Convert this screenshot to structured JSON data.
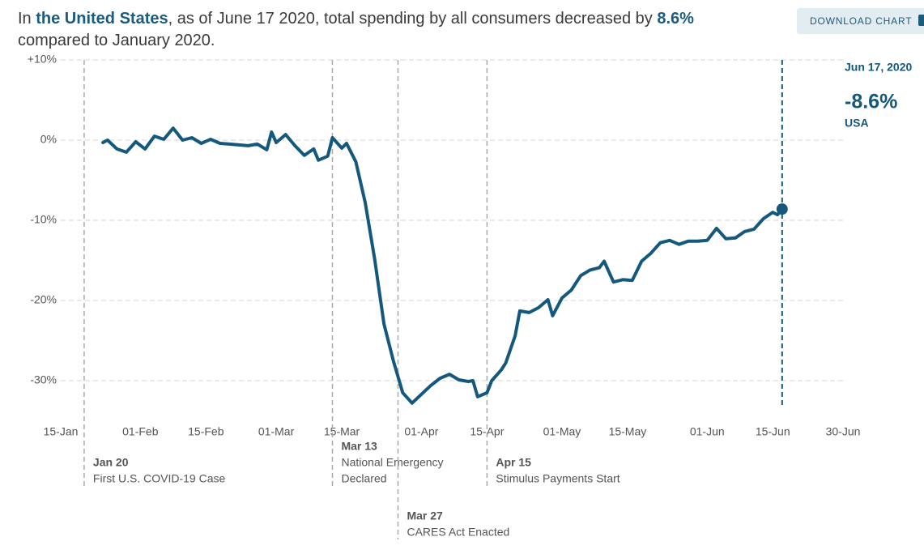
{
  "chart_data": {
    "type": "line",
    "title_parts": [
      {
        "text": "In ",
        "bold": false
      },
      {
        "text": "the United States",
        "bold": true
      },
      {
        "text": ", as of June 17 2020, total spending by all consumers decreased by ",
        "bold": false
      },
      {
        "text": "8.6%",
        "bold": true
      },
      {
        "text": " compared to January 2020.",
        "bold": false
      }
    ],
    "button": "DOWNLOAD CHART",
    "color": "#14587d",
    "x": [
      "2020-01-24",
      "2020-01-25",
      "2020-01-27",
      "2020-01-29",
      "2020-01-31",
      "2020-02-02",
      "2020-02-04",
      "2020-02-06",
      "2020-02-08",
      "2020-02-10",
      "2020-02-12",
      "2020-02-14",
      "2020-02-16",
      "2020-02-18",
      "2020-02-20",
      "2020-02-22",
      "2020-02-24",
      "2020-02-26",
      "2020-02-28",
      "2020-02-29",
      "2020-03-01",
      "2020-03-03",
      "2020-03-05",
      "2020-03-07",
      "2020-03-09",
      "2020-03-10",
      "2020-03-12",
      "2020-03-13",
      "2020-03-15",
      "2020-03-16",
      "2020-03-18",
      "2020-03-20",
      "2020-03-22",
      "2020-03-24",
      "2020-03-26",
      "2020-03-28",
      "2020-03-30",
      "2020-04-01",
      "2020-04-03",
      "2020-04-05",
      "2020-04-07",
      "2020-04-09",
      "2020-04-11",
      "2020-04-12",
      "2020-04-13",
      "2020-04-15",
      "2020-04-16",
      "2020-04-18",
      "2020-04-19",
      "2020-04-21",
      "2020-04-22",
      "2020-04-24",
      "2020-04-26",
      "2020-04-28",
      "2020-04-29",
      "2020-05-01",
      "2020-05-03",
      "2020-05-05",
      "2020-05-07",
      "2020-05-09",
      "2020-05-10",
      "2020-05-12",
      "2020-05-14",
      "2020-05-16",
      "2020-05-18",
      "2020-05-20",
      "2020-05-22",
      "2020-05-24",
      "2020-05-26",
      "2020-05-28",
      "2020-05-30",
      "2020-06-01",
      "2020-06-03",
      "2020-06-05",
      "2020-06-07",
      "2020-06-09",
      "2020-06-11",
      "2020-06-13",
      "2020-06-15",
      "2020-06-16",
      "2020-06-17"
    ],
    "values": [
      -0.3,
      0,
      -1.1,
      -1.5,
      -0.2,
      -1.1,
      0.5,
      0.1,
      1.5,
      0,
      0.3,
      -0.4,
      0.1,
      -0.4,
      -0.5,
      -0.6,
      -0.7,
      -0.5,
      -1.2,
      1.0,
      -0.3,
      0.7,
      -0.7,
      -1.9,
      -1.1,
      -2.5,
      -2.0,
      0.3,
      -1.0,
      -0.4,
      -2.7,
      -7.8,
      -14.8,
      -22.9,
      -27.5,
      -31.5,
      -32.8,
      -31.7,
      -30.6,
      -29.7,
      -29.2,
      -29.9,
      -30.1,
      -30.0,
      -32.0,
      -31.5,
      -30.0,
      -28.7,
      -27.8,
      -24.4,
      -21.3,
      -21.5,
      -20.9,
      -19.9,
      -21.9,
      -19.7,
      -18.7,
      -16.9,
      -16.2,
      -15.9,
      -15.1,
      -17.7,
      -17.4,
      -17.5,
      -15.1,
      -14.1,
      -12.8,
      -12.5,
      -13.0,
      -12.6,
      -12.6,
      -12.5,
      -11.0,
      -12.3,
      -12.2,
      -11.4,
      -11.1,
      -9.8,
      -9.0,
      -9.3,
      -8.6
    ],
    "xlim": [
      "2020-01-15",
      "2020-06-30"
    ],
    "xticks": [
      {
        "value": "2020-01-15",
        "label": "15-Jan"
      },
      {
        "value": "2020-02-01",
        "label": "01-Feb"
      },
      {
        "value": "2020-02-15",
        "label": "15-Feb"
      },
      {
        "value": "2020-03-01",
        "label": "01-Mar"
      },
      {
        "value": "2020-03-15",
        "label": "15-Mar"
      },
      {
        "value": "2020-04-01",
        "label": "01-Apr"
      },
      {
        "value": "2020-04-15",
        "label": "15-Apr"
      },
      {
        "value": "2020-05-01",
        "label": "01-May"
      },
      {
        "value": "2020-05-15",
        "label": "15-May"
      },
      {
        "value": "2020-06-01",
        "label": "01-Jun"
      },
      {
        "value": "2020-06-15",
        "label": "15-Jun"
      },
      {
        "value": "2020-06-30",
        "label": "30-Jun"
      }
    ],
    "ylim": [
      -34,
      10
    ],
    "yticks": [
      {
        "value": 10,
        "label": "+10%"
      },
      {
        "value": 0,
        "label": "0%"
      },
      {
        "value": -10,
        "label": "-10%"
      },
      {
        "value": -20,
        "label": "-20%"
      },
      {
        "value": -30,
        "label": "-30%"
      }
    ],
    "grid": true,
    "annotations": [
      {
        "x": "2020-01-20",
        "label": "Jan 20",
        "text": [
          "First U.S. COVID-19 Case"
        ]
      },
      {
        "x": "2020-03-13",
        "label": "Mar 13",
        "text": [
          "National Emergency",
          "Declared"
        ]
      },
      {
        "x": "2020-03-27",
        "label": "Mar 27",
        "text": [
          "CARES Act Enacted"
        ]
      },
      {
        "x": "2020-04-15",
        "label": "Apr 15",
        "text": [
          "Stimulus Payments Start"
        ]
      }
    ],
    "highlight": {
      "x": "2020-06-17",
      "date_label": "Jun 17, 2020",
      "value": -8.6,
      "value_label": "-8.6%",
      "region": "USA"
    }
  }
}
